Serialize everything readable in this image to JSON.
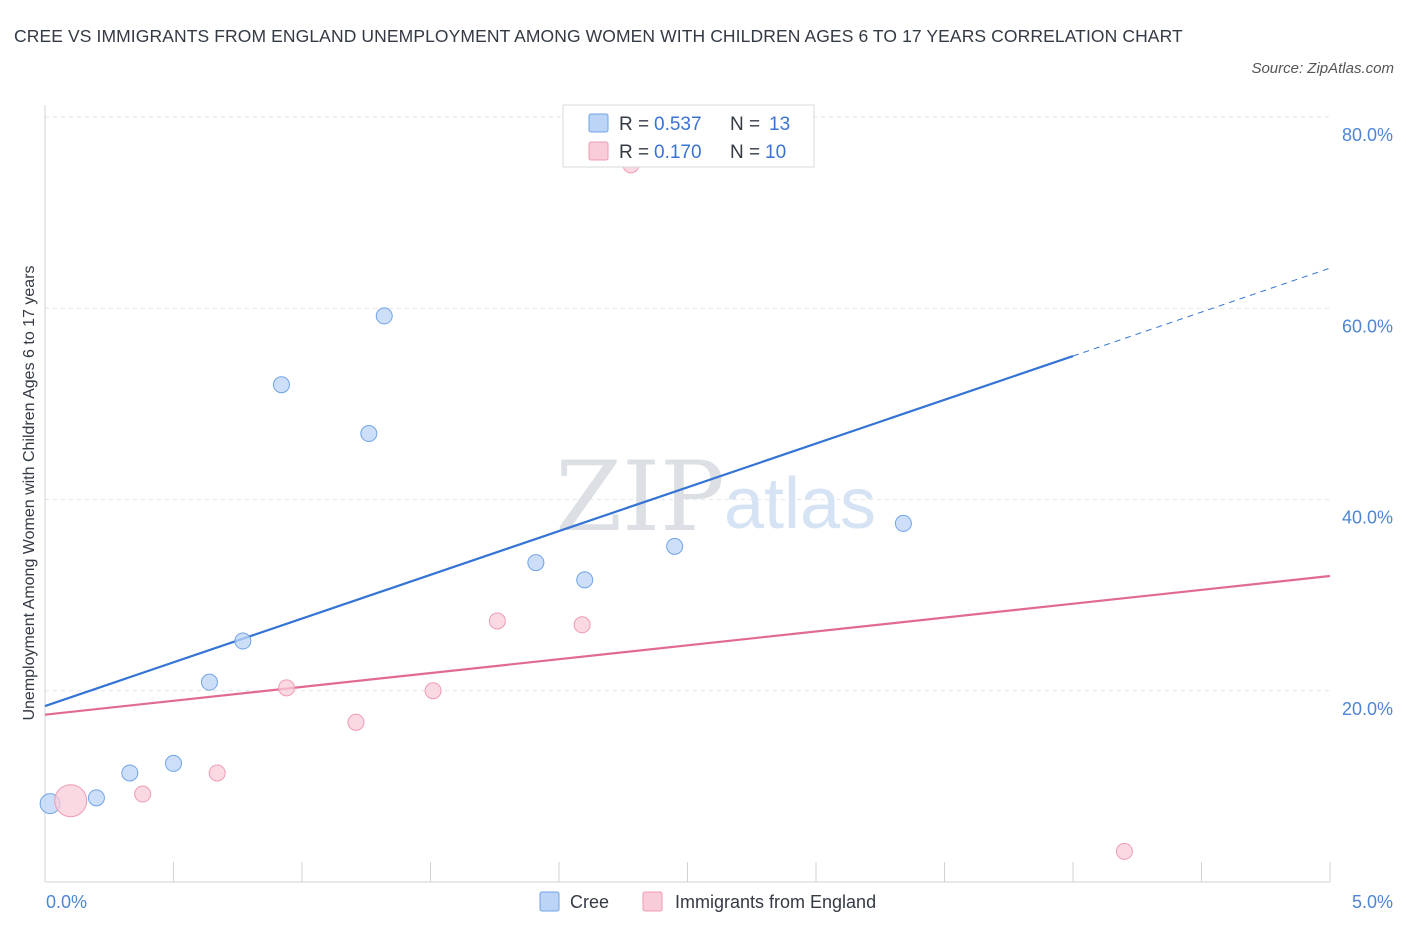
{
  "title": "CREE VS IMMIGRANTS FROM ENGLAND UNEMPLOYMENT AMONG WOMEN WITH CHILDREN AGES 6 TO 17 YEARS CORRELATION CHART",
  "source": "Source: ZipAtlas.com",
  "watermark": {
    "zip": "ZIP",
    "atlas": "atlas"
  },
  "chart_data": {
    "type": "scatter",
    "title": "CREE VS IMMIGRANTS FROM ENGLAND UNEMPLOYMENT AMONG WOMEN WITH CHILDREN AGES 6 TO 17 YEARS CORRELATION CHART",
    "xlabel": "",
    "ylabel": "Unemployment Among Women with Children Ages 6 to 17 years",
    "xlim": [
      0.0,
      5.0
    ],
    "ylim": [
      0.0,
      80.0
    ],
    "x_tick_labels": [
      "0.0%",
      "5.0%"
    ],
    "y_ticks": [
      20,
      40,
      60,
      80
    ],
    "y_tick_labels": [
      "20.0%",
      "40.0%",
      "60.0%",
      "80.0%"
    ],
    "grid": true,
    "legend_position": "top-center",
    "series": [
      {
        "name": "Cree",
        "color": "#6fa3e6",
        "fill": "#bcd4f5",
        "r_label": "R =",
        "r_value": "0.537",
        "n_label": "N =",
        "n_value": "13",
        "points": [
          {
            "x": 0.02,
            "y": 8.2,
            "size": "large"
          },
          {
            "x": 0.2,
            "y": 8.8
          },
          {
            "x": 0.33,
            "y": 11.4
          },
          {
            "x": 0.5,
            "y": 12.4
          },
          {
            "x": 0.64,
            "y": 20.9
          },
          {
            "x": 0.77,
            "y": 25.2
          },
          {
            "x": 0.92,
            "y": 52.0
          },
          {
            "x": 1.26,
            "y": 46.9
          },
          {
            "x": 1.32,
            "y": 59.2
          },
          {
            "x": 1.91,
            "y": 33.4
          },
          {
            "x": 2.1,
            "y": 31.6
          },
          {
            "x": 2.45,
            "y": 35.1
          },
          {
            "x": 3.34,
            "y": 37.5
          }
        ],
        "trend": {
          "x0": 0.0,
          "y0": 18.4,
          "x1": 4.0,
          "y1": 55.0,
          "dash_to_x": 5.0,
          "dash_to_y": 64.2,
          "color": "#3474d4"
        }
      },
      {
        "name": "Immigrants from England",
        "color": "#ef9bb3",
        "fill": "#f9ccd9",
        "r_label": "R =",
        "r_value": "0.170",
        "n_label": "N =",
        "n_value": "10",
        "points": [
          {
            "x": 0.1,
            "y": 8.5,
            "size": "large"
          },
          {
            "x": 0.38,
            "y": 9.2
          },
          {
            "x": 0.67,
            "y": 11.4
          },
          {
            "x": 0.94,
            "y": 20.3
          },
          {
            "x": 1.21,
            "y": 16.7
          },
          {
            "x": 1.51,
            "y": 20.0
          },
          {
            "x": 1.76,
            "y": 27.3
          },
          {
            "x": 2.09,
            "y": 26.9
          },
          {
            "x": 2.28,
            "y": 75.0
          },
          {
            "x": 4.2,
            "y": 3.2
          }
        ],
        "trend": {
          "x0": 0.0,
          "y0": 17.5,
          "x1": 5.0,
          "y1": 32.0,
          "color": "#e06a91"
        }
      }
    ]
  }
}
